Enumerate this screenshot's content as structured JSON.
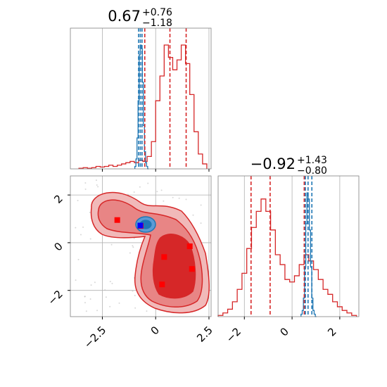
{
  "chart_data": [
    {
      "panel": "marginal-top",
      "type": "line",
      "title": {
        "value": "0.67",
        "plus": "+0.76",
        "minus": "−1.18"
      },
      "xlim": [
        -4.0,
        2.6
      ],
      "x_ticks": [
        -2.5,
        0.0,
        2.5
      ],
      "grid": true,
      "series": [
        {
          "color": "#d62728",
          "style": "step-histogram",
          "x": [
            -3.5,
            -3.3,
            -3.1,
            -2.9,
            -2.7,
            -2.5,
            -2.3,
            -2.1,
            -1.9,
            -1.7,
            -1.5,
            -1.3,
            -1.1,
            -0.9,
            -0.7,
            -0.5,
            -0.3,
            -0.1,
            0.1,
            0.3,
            0.5,
            0.7,
            0.9,
            1.1,
            1.3,
            1.5,
            1.7,
            1.9,
            2.1,
            2.3
          ],
          "values": [
            0.005,
            0.01,
            0.005,
            0.01,
            0.02,
            0.015,
            0.02,
            0.03,
            0.02,
            0.03,
            0.04,
            0.05,
            0.06,
            0.05,
            0.07,
            0.06,
            0.1,
            0.22,
            0.55,
            0.75,
            1.0,
            0.9,
            0.8,
            0.88,
            1.0,
            0.85,
            0.6,
            0.3,
            0.12,
            0.04
          ]
        },
        {
          "color": "#1f77b4",
          "style": "step-histogram",
          "x": [
            -0.95,
            -0.9,
            -0.85,
            -0.8,
            -0.75,
            -0.7,
            -0.65,
            -0.6,
            -0.55,
            -0.5,
            -0.45,
            -0.4,
            -0.35
          ],
          "values": [
            0.02,
            0.08,
            0.25,
            0.55,
            0.92,
            1.0,
            0.97,
            0.7,
            0.35,
            0.14,
            0.05,
            0.02,
            0.0
          ]
        }
      ],
      "vlines": [
        {
          "x": -0.51,
          "color": "#d62728"
        },
        {
          "x": 0.67,
          "color": "#d62728"
        },
        {
          "x": 1.43,
          "color": "#d62728"
        },
        {
          "x": -0.8,
          "color": "#1f77b4"
        },
        {
          "x": -0.72,
          "color": "#1f77b4"
        },
        {
          "x": -0.64,
          "color": "#1f77b4"
        }
      ]
    },
    {
      "panel": "joint",
      "type": "scatter",
      "xlim": [
        -4.0,
        2.6
      ],
      "ylim": [
        -3.1,
        2.8
      ],
      "x_ticks": [
        -2.5,
        0.0,
        2.5
      ],
      "y_ticks": [
        2,
        0,
        -2
      ],
      "grid": true,
      "red_markers": [
        {
          "x": -1.8,
          "y": 0.95
        },
        {
          "x": -0.7,
          "y": 0.7
        },
        {
          "x": 1.6,
          "y": -0.15
        },
        {
          "x": 0.4,
          "y": -0.6
        },
        {
          "x": 1.7,
          "y": -1.1
        },
        {
          "x": 0.3,
          "y": -1.75
        }
      ],
      "blue_markers": [
        {
          "x": -0.72,
          "y": 0.72
        }
      ],
      "red_color": "#d62728",
      "blue_color": "#1f77b4"
    },
    {
      "panel": "marginal-right",
      "type": "line",
      "title": {
        "value": "−0.92",
        "plus": "+1.43",
        "minus": "−0.80"
      },
      "xlim": [
        -3.1,
        2.8
      ],
      "x_ticks": [
        -2,
        0,
        2
      ],
      "grid": true,
      "series": [
        {
          "color": "#d62728",
          "style": "step-histogram",
          "x": [
            -3.0,
            -2.8,
            -2.6,
            -2.4,
            -2.2,
            -2.0,
            -1.8,
            -1.6,
            -1.4,
            -1.2,
            -1.0,
            -0.8,
            -0.6,
            -0.4,
            -0.2,
            0.0,
            0.2,
            0.4,
            0.6,
            0.8,
            1.0,
            1.2,
            1.4,
            1.6,
            1.8,
            2.0,
            2.2,
            2.4,
            2.6
          ],
          "values": [
            0.01,
            0.03,
            0.06,
            0.12,
            0.22,
            0.35,
            0.55,
            0.72,
            0.85,
            0.95,
            0.85,
            0.7,
            0.5,
            0.42,
            0.3,
            0.28,
            0.33,
            0.42,
            0.5,
            0.45,
            0.38,
            0.3,
            0.22,
            0.18,
            0.12,
            0.08,
            0.05,
            0.03,
            0.01
          ]
        },
        {
          "color": "#1f77b4",
          "style": "step-histogram",
          "x": [
            0.4,
            0.45,
            0.5,
            0.55,
            0.6,
            0.65,
            0.7,
            0.75,
            0.8,
            0.85,
            0.9,
            0.95,
            1.0
          ],
          "values": [
            0.02,
            0.05,
            0.15,
            0.4,
            0.75,
            1.0,
            0.95,
            0.7,
            0.4,
            0.15,
            0.05,
            0.02,
            0.0
          ]
        }
      ],
      "vlines": [
        {
          "x": -1.72,
          "color": "#d62728"
        },
        {
          "x": -0.92,
          "color": "#d62728"
        },
        {
          "x": 0.51,
          "color": "#d62728"
        },
        {
          "x": 0.56,
          "color": "#1f77b4"
        },
        {
          "x": 0.67,
          "color": "#1f77b4"
        },
        {
          "x": 0.83,
          "color": "#1f77b4"
        }
      ]
    }
  ]
}
